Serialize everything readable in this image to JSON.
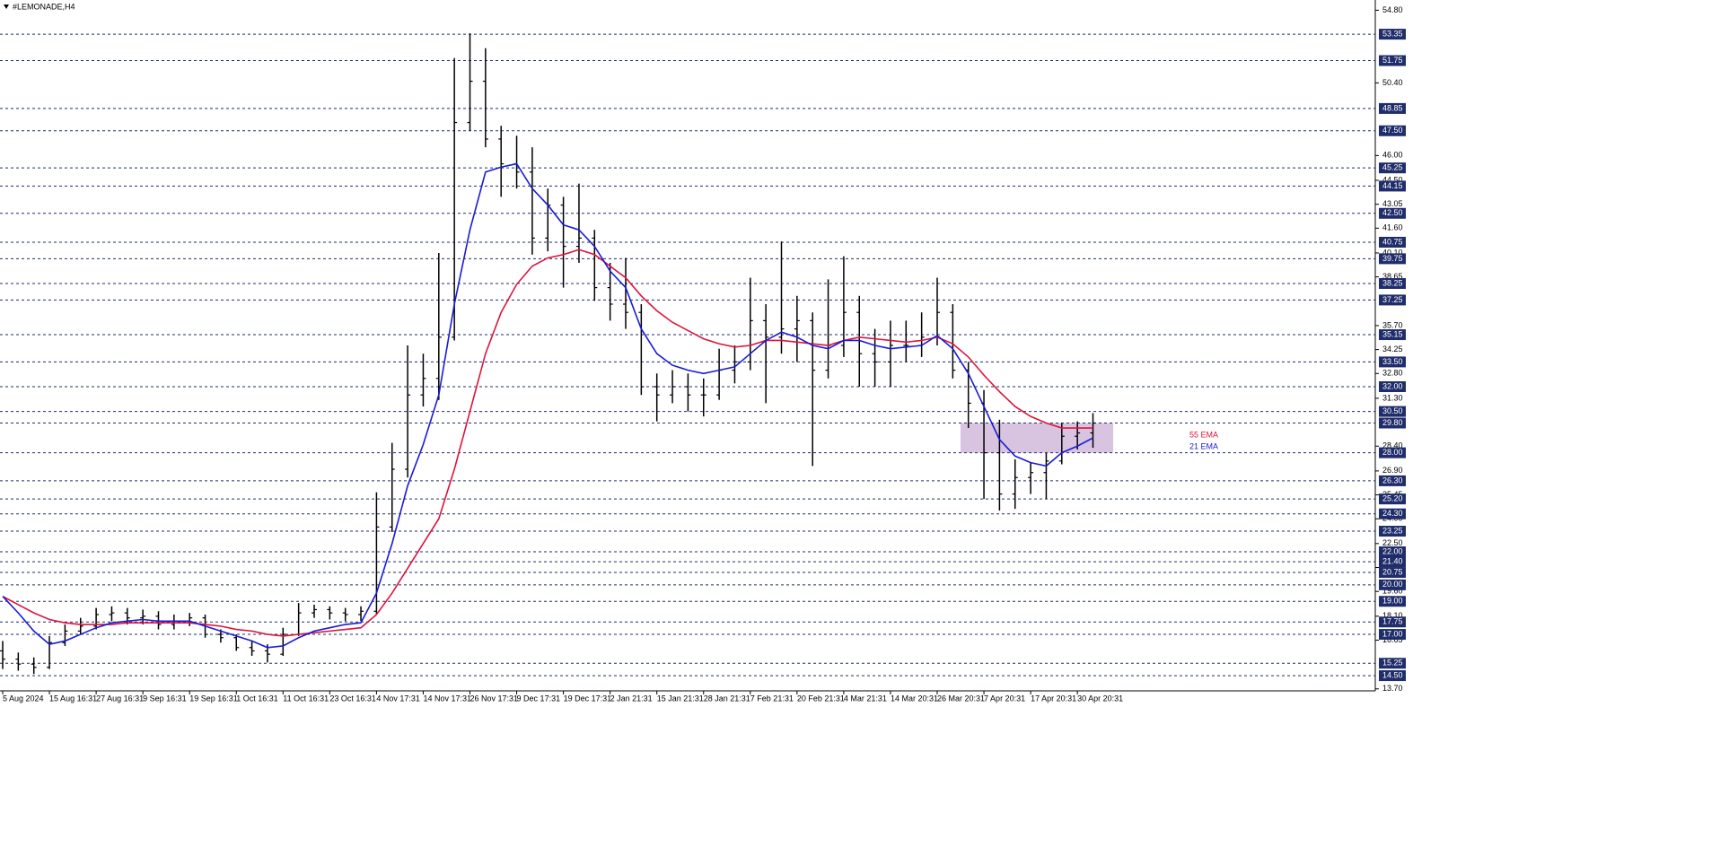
{
  "chart_data": {
    "type": "ohlc",
    "title": "#LEMONADE,H4",
    "categories": [
      "5 Aug 2024",
      null,
      null,
      "15 Aug 16:31",
      null,
      null,
      "27 Aug 16:31",
      null,
      null,
      "9 Sep 16:31",
      null,
      null,
      "19 Sep 16:31",
      null,
      null,
      "1 Oct 16:31",
      null,
      null,
      "11 Oct 16:31",
      null,
      null,
      "23 Oct 16:31",
      null,
      null,
      "4 Nov 17:31",
      null,
      null,
      "14 Nov 17:31",
      null,
      null,
      "26 Nov 17:31",
      null,
      null,
      "9 Dec 17:31",
      null,
      null,
      "19 Dec 17:31",
      null,
      null,
      "2 Jan 21:31",
      null,
      null,
      "15 Jan 21:31",
      null,
      null,
      "28 Jan 21:31",
      null,
      null,
      "7 Feb 21:31",
      null,
      null,
      "20 Feb 21:31",
      null,
      null,
      "4 Mar 21:31",
      null,
      null,
      "14 Mar 20:31",
      null,
      null,
      "26 Mar 20:31",
      null,
      null,
      "7 Apr 20:31",
      null,
      null,
      "17 Apr 20:31",
      null,
      null,
      "30 Apr 20:31",
      null
    ],
    "open": [
      16.0,
      15.5,
      15.2,
      15.0,
      16.5,
      17.2,
      17.5,
      18.2,
      18.3,
      18.0,
      18.1,
      17.6,
      17.8,
      18.0,
      17.0,
      16.8,
      16.2,
      16.0,
      15.8,
      17.0,
      18.3,
      18.5,
      18.3,
      18.2,
      18.4,
      23.5,
      27.0,
      31.5,
      32.5,
      35.0,
      48.0,
      50.5,
      47.0,
      45.5,
      45.0,
      41.0,
      43.0,
      40.5,
      41.0,
      38.0,
      37.0,
      36.5,
      32.0,
      31.5,
      32.0,
      31.5,
      31.5,
      33.0,
      33.5,
      36.0,
      35.0,
      35.5,
      36.0,
      33.0,
      34.5,
      36.5,
      34.0,
      33.5,
      34.5,
      34.5,
      35.0,
      36.5,
      33.0,
      31.0,
      28.0,
      25.5,
      26.5,
      26.8,
      27.5,
      29.0,
      29.2
    ],
    "high": [
      16.6,
      15.9,
      15.6,
      16.9,
      17.6,
      18.0,
      18.6,
      18.7,
      18.6,
      18.5,
      18.4,
      18.2,
      18.3,
      18.2,
      17.3,
      17.0,
      16.6,
      16.4,
      17.4,
      18.9,
      18.8,
      18.7,
      18.6,
      18.7,
      25.6,
      28.6,
      34.5,
      34.0,
      40.1,
      51.9,
      53.4,
      52.5,
      47.8,
      47.2,
      46.5,
      44.0,
      43.5,
      44.3,
      41.5,
      39.5,
      39.8,
      37.0,
      32.8,
      33.0,
      32.8,
      32.5,
      34.3,
      34.5,
      38.6,
      37.0,
      40.8,
      37.5,
      36.5,
      38.5,
      39.9,
      37.5,
      35.5,
      36.0,
      36.0,
      36.5,
      38.6,
      37.0,
      33.5,
      31.8,
      30.0,
      27.6,
      27.4,
      28.0,
      29.8,
      29.9,
      30.4
    ],
    "low": [
      14.9,
      14.8,
      14.6,
      14.9,
      16.3,
      17.0,
      17.3,
      17.8,
      17.6,
      17.6,
      17.3,
      17.3,
      17.5,
      16.8,
      16.5,
      16.0,
      15.7,
      15.3,
      15.7,
      16.9,
      18.0,
      17.9,
      17.8,
      17.8,
      18.2,
      23.2,
      26.5,
      30.8,
      31.2,
      34.8,
      47.5,
      46.5,
      43.5,
      44.0,
      40.0,
      40.2,
      38.0,
      39.5,
      37.2,
      36.0,
      35.5,
      31.5,
      29.9,
      31.0,
      30.5,
      30.2,
      31.2,
      32.2,
      33.0,
      31.0,
      34.0,
      33.5,
      27.2,
      32.5,
      33.8,
      32.0,
      32.0,
      32.0,
      33.5,
      33.8,
      34.5,
      32.5,
      29.5,
      25.2,
      24.5,
      24.6,
      25.5,
      25.2,
      27.3,
      28.2,
      28.3
    ],
    "close": [
      15.5,
      15.2,
      15.0,
      16.5,
      17.2,
      17.5,
      18.2,
      18.3,
      18.0,
      18.1,
      17.6,
      17.8,
      18.0,
      17.0,
      16.8,
      16.2,
      16.0,
      15.8,
      17.0,
      18.3,
      18.5,
      18.3,
      18.2,
      18.4,
      23.5,
      27.0,
      31.5,
      32.5,
      35.0,
      48.0,
      50.5,
      47.0,
      45.5,
      45.0,
      41.0,
      43.0,
      40.5,
      41.0,
      38.0,
      37.0,
      36.5,
      32.0,
      31.5,
      32.0,
      31.5,
      31.5,
      33.0,
      33.5,
      36.0,
      35.0,
      35.5,
      36.0,
      33.0,
      34.5,
      36.5,
      34.0,
      33.5,
      34.5,
      34.5,
      35.0,
      36.5,
      33.0,
      31.0,
      28.0,
      25.5,
      26.5,
      26.8,
      27.5,
      29.0,
      29.2,
      29.8
    ],
    "bar_color": "#000000",
    "series": [
      {
        "name": "55 EMA",
        "color": "#dc143c",
        "values": [
          19.3,
          18.8,
          18.3,
          17.9,
          17.7,
          17.6,
          17.6,
          17.6,
          17.7,
          17.7,
          17.7,
          17.7,
          17.7,
          17.6,
          17.5,
          17.3,
          17.2,
          17.0,
          16.9,
          17.0,
          17.1,
          17.2,
          17.3,
          17.4,
          18.2,
          19.5,
          21.0,
          22.5,
          24.0,
          27.0,
          30.5,
          34.0,
          36.5,
          38.2,
          39.3,
          39.8,
          40.0,
          40.3,
          40.0,
          39.3,
          38.6,
          37.5,
          36.6,
          35.9,
          35.4,
          34.9,
          34.6,
          34.4,
          34.5,
          34.8,
          34.8,
          34.7,
          34.6,
          34.5,
          34.8,
          35.0,
          34.9,
          34.8,
          34.7,
          34.8,
          35.0,
          34.6,
          33.8,
          32.7,
          31.7,
          30.8,
          30.2,
          29.8,
          29.5,
          29.5,
          29.5
        ]
      },
      {
        "name": "21 EMA",
        "color": "#1a1ad6",
        "values": [
          19.3,
          18.3,
          17.2,
          16.4,
          16.6,
          17.0,
          17.4,
          17.7,
          17.8,
          17.9,
          17.8,
          17.8,
          17.8,
          17.5,
          17.2,
          16.9,
          16.6,
          16.2,
          16.3,
          16.8,
          17.2,
          17.4,
          17.6,
          17.7,
          19.5,
          22.5,
          26.0,
          28.5,
          31.5,
          37.0,
          41.5,
          45.0,
          45.3,
          45.5,
          44.0,
          43.0,
          41.8,
          41.5,
          40.5,
          39.0,
          38.0,
          35.5,
          34.0,
          33.3,
          33.0,
          32.8,
          33.0,
          33.2,
          34.0,
          34.8,
          35.3,
          35.0,
          34.5,
          34.3,
          34.8,
          34.8,
          34.5,
          34.3,
          34.4,
          34.5,
          35.1,
          34.3,
          32.8,
          30.8,
          28.8,
          27.8,
          27.4,
          27.2,
          28.0,
          28.4,
          28.9
        ]
      }
    ],
    "ylim": [
      13.58,
      55.42
    ],
    "yticks": [
      {
        "value": 54.8,
        "label": "54.80"
      },
      {
        "value": 50.4,
        "label": "50.40"
      },
      {
        "value": 46.0,
        "label": "46.00"
      },
      {
        "value": 44.5,
        "label": "44.50"
      },
      {
        "value": 43.05,
        "label": "43.05"
      },
      {
        "value": 41.6,
        "label": "41.60"
      },
      {
        "value": 40.1,
        "label": "40.10"
      },
      {
        "value": 38.65,
        "label": "38.65"
      },
      {
        "value": 35.7,
        "label": "35.70"
      },
      {
        "value": 34.25,
        "label": "34.25"
      },
      {
        "value": 32.8,
        "label": "32.80"
      },
      {
        "value": 31.3,
        "label": "31.30"
      },
      {
        "value": 28.4,
        "label": "28.40"
      },
      {
        "value": 26.9,
        "label": "26.90"
      },
      {
        "value": 25.45,
        "label": "25.45"
      },
      {
        "value": 24.0,
        "label": "24.00"
      },
      {
        "value": 22.5,
        "label": "22.50"
      },
      {
        "value": 21.05,
        "label": "21.05"
      },
      {
        "value": 19.6,
        "label": "19.60"
      },
      {
        "value": 18.1,
        "label": "18.10"
      },
      {
        "value": 16.65,
        "label": "16.65"
      },
      {
        "value": 13.7,
        "label": "13.70"
      }
    ],
    "levels": [
      {
        "value": 53.35,
        "label": "53.35"
      },
      {
        "value": 51.75,
        "label": "51.75"
      },
      {
        "value": 48.85,
        "label": "48.85"
      },
      {
        "value": 47.5,
        "label": "47.50"
      },
      {
        "value": 45.25,
        "label": "45.25"
      },
      {
        "value": 44.15,
        "label": "44.15"
      },
      {
        "value": 42.5,
        "label": "42.50"
      },
      {
        "value": 40.75,
        "label": "40.75"
      },
      {
        "value": 39.75,
        "label": "39.75"
      },
      {
        "value": 38.25,
        "label": "38.25"
      },
      {
        "value": 37.25,
        "label": "37.25"
      },
      {
        "value": 35.15,
        "label": "35.15"
      },
      {
        "value": 33.5,
        "label": "33.50"
      },
      {
        "value": 32.0,
        "label": "32.00"
      },
      {
        "value": 30.5,
        "label": "30.50"
      },
      {
        "value": 29.8,
        "label": "29.80"
      },
      {
        "value": 28.0,
        "label": "28.00"
      },
      {
        "value": 26.3,
        "label": "26.30"
      },
      {
        "value": 25.2,
        "label": "25.20"
      },
      {
        "value": 24.3,
        "label": "24.30"
      },
      {
        "value": 23.25,
        "label": "23.25"
      },
      {
        "value": 22.0,
        "label": "22.00"
      },
      {
        "value": 21.4,
        "label": "21.40"
      },
      {
        "value": 20.75,
        "label": "20.75"
      },
      {
        "value": 20.0,
        "label": "20.00"
      },
      {
        "value": 19.0,
        "label": "19.00"
      },
      {
        "value": 17.75,
        "label": "17.75"
      },
      {
        "value": 17.0,
        "label": "17.00"
      },
      {
        "value": 15.25,
        "label": "15.25"
      },
      {
        "value": 14.5,
        "label": "14.50"
      }
    ],
    "level_color": "#1f2d6b",
    "zone": {
      "from": 28.0,
      "to": 29.8,
      "color": "#d8c3e0"
    },
    "grid": false
  }
}
